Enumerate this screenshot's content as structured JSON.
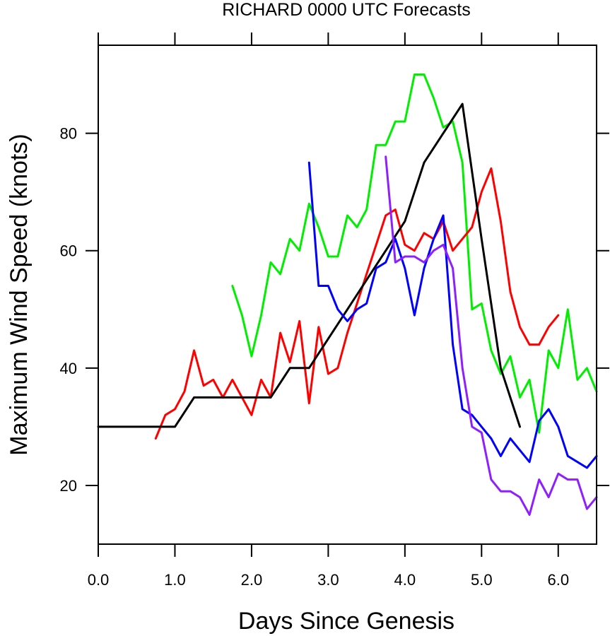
{
  "chart_data": {
    "type": "line",
    "title": "RICHARD 0000 UTC Forecasts",
    "xlabel": "Days Since Genesis",
    "ylabel": "Maximum Wind Speed (knots)",
    "xlim": [
      0,
      6.5
    ],
    "ylim": [
      10,
      95
    ],
    "x_ticks": [
      "0.0",
      "1.0",
      "2.0",
      "3.0",
      "4.0",
      "5.0",
      "6.0"
    ],
    "y_ticks": [
      "20",
      "40",
      "60",
      "80"
    ],
    "grid": false,
    "legend": "none",
    "series": [
      {
        "color": "#00ee00",
        "x": [
          1.75,
          1.875,
          2.0,
          2.125,
          2.25,
          2.375,
          2.5,
          2.625,
          2.75,
          2.875,
          3.0,
          3.125,
          3.25,
          3.375,
          3.5,
          3.625,
          3.75,
          3.875,
          4.0,
          4.125,
          4.25,
          4.375,
          4.5,
          4.625,
          4.75,
          4.875,
          5.0,
          5.125,
          5.25,
          5.375,
          5.5,
          5.625,
          5.75,
          5.875,
          6.0,
          6.125,
          6.25,
          6.375,
          6.5
        ],
        "y": [
          54,
          49,
          42,
          49,
          58,
          56,
          62,
          60,
          68,
          64,
          59,
          59,
          66,
          64,
          67,
          78,
          78,
          82,
          82,
          90,
          90,
          86,
          81,
          82,
          75,
          50,
          51,
          43,
          39,
          42,
          35,
          38,
          29,
          43,
          40,
          50,
          38,
          40,
          36
        ]
      },
      {
        "color": "#ff0000",
        "x": [
          0.75,
          0.875,
          1.0,
          1.125,
          1.25,
          1.375,
          1.5,
          1.625,
          1.75,
          1.875,
          2.0,
          2.125,
          2.25,
          2.375,
          2.5,
          2.625,
          2.75,
          2.875,
          3.0,
          3.125,
          3.25,
          3.375,
          3.5,
          3.625,
          3.75,
          3.875,
          4.0,
          4.125,
          4.25,
          4.375,
          4.5,
          4.625,
          4.75,
          4.875,
          5.0,
          5.125,
          5.25,
          5.375,
          5.5,
          5.625,
          5.75,
          5.875,
          6.0
        ],
        "y": [
          28,
          32,
          33,
          36,
          43,
          37,
          38,
          35,
          38,
          35,
          32,
          38,
          35,
          46,
          41,
          48,
          34,
          47,
          39,
          40,
          46,
          51,
          56,
          61,
          66,
          67,
          61,
          60,
          63,
          62,
          65,
          60,
          62,
          64,
          70,
          74,
          65,
          53,
          47,
          44,
          44,
          47,
          49
        ]
      },
      {
        "color": "#000000",
        "x": [
          0.0,
          1.0,
          1.25,
          2.25,
          2.5,
          2.75,
          3.0,
          3.25,
          3.5,
          3.75,
          4.0,
          4.25,
          4.5,
          4.75,
          5.0,
          5.25,
          5.5
        ],
        "y": [
          30,
          30,
          35,
          35,
          40,
          40,
          45,
          50,
          55,
          60,
          65,
          75,
          80,
          85,
          62,
          40,
          30
        ]
      },
      {
        "color": "#0000ff",
        "x": [
          2.75,
          2.875,
          3.0,
          3.125,
          3.25,
          3.375,
          3.5,
          3.625,
          3.75,
          3.875,
          4.0,
          4.125,
          4.25,
          4.375,
          4.5,
          4.625,
          4.75,
          4.875,
          5.0,
          5.125,
          5.25,
          5.375,
          5.5,
          5.625,
          5.75,
          5.875,
          6.0,
          6.125,
          6.25,
          6.375,
          6.5
        ],
        "y": [
          75,
          54,
          54,
          50,
          48,
          50,
          51,
          57,
          58,
          62,
          57,
          49,
          57,
          62,
          66,
          44,
          33,
          32,
          30,
          28,
          25,
          28,
          26,
          24,
          31,
          33,
          30,
          25,
          24,
          23,
          25
        ]
      },
      {
        "color": "#8f1fff",
        "x": [
          3.75,
          3.875,
          4.0,
          4.125,
          4.25,
          4.375,
          4.5,
          4.625,
          4.75,
          4.875,
          5.0,
          5.125,
          5.25,
          5.375,
          5.5,
          5.625,
          5.75,
          5.875,
          6.0,
          6.125,
          6.25,
          6.375,
          6.5
        ],
        "y": [
          76,
          58,
          59,
          59,
          58,
          60,
          61,
          57,
          40,
          30,
          29,
          21,
          19,
          19,
          18,
          15,
          21,
          18,
          22,
          21,
          21,
          16,
          18
        ]
      }
    ]
  }
}
